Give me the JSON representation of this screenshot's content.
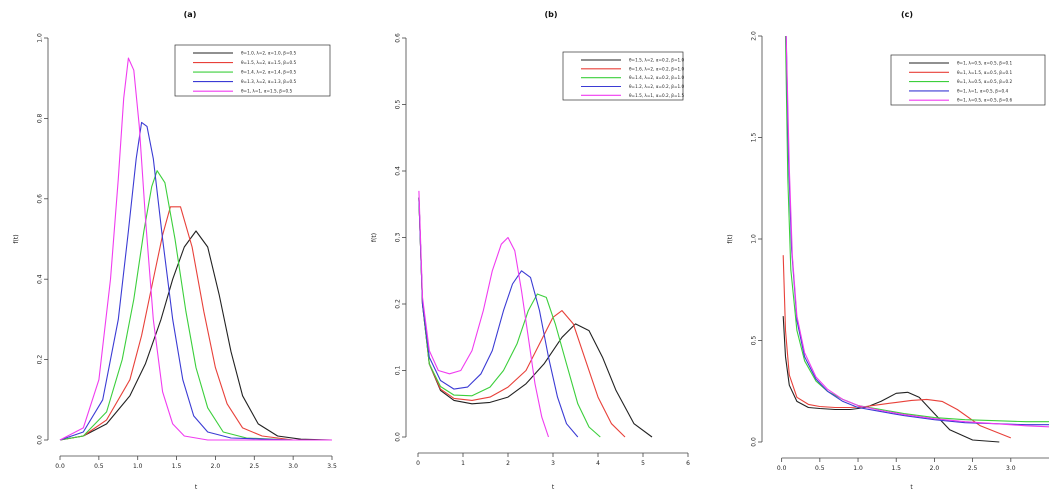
{
  "palette": [
    "#222222",
    "#e8413a",
    "#3ccf3c",
    "#3b3bd4",
    "#f03cf0"
  ],
  "chart_data": [
    {
      "type": "line",
      "title": "(a)",
      "xlabel": "t",
      "ylabel": "f(t)",
      "xlim": [
        0,
        3.5
      ],
      "ylim": [
        0,
        1.0
      ],
      "xticks": [
        0.0,
        0.5,
        1.0,
        1.5,
        2.0,
        2.5,
        3.0,
        3.5
      ],
      "xtick_labels": [
        "0.0",
        "0.5",
        "1.0",
        "1.5",
        "2.0",
        "2.5",
        "3.0",
        "3.5"
      ],
      "yticks": [
        0.0,
        0.2,
        0.4,
        0.6,
        0.8,
        1.0
      ],
      "ytick_labels": [
        "0.0",
        "0.2",
        "0.4",
        "0.6",
        "0.8",
        "1.0"
      ],
      "legend_position": "top-right",
      "series": [
        {
          "name": "θ=1.0, λ=2, α=1.0, β=0.5",
          "x": [
            0,
            0.3,
            0.6,
            0.9,
            1.1,
            1.3,
            1.45,
            1.6,
            1.75,
            1.9,
            2.05,
            2.2,
            2.35,
            2.55,
            2.8,
            3.1,
            3.5
          ],
          "y": [
            0,
            0.01,
            0.04,
            0.11,
            0.19,
            0.3,
            0.4,
            0.48,
            0.52,
            0.48,
            0.36,
            0.22,
            0.11,
            0.04,
            0.01,
            0.002,
            0
          ]
        },
        {
          "name": "θ=1.5, λ=2, α=1.5, β=0.5",
          "x": [
            0,
            0.3,
            0.6,
            0.9,
            1.05,
            1.2,
            1.32,
            1.42,
            1.55,
            1.7,
            1.85,
            2.0,
            2.15,
            2.35,
            2.6,
            3.0,
            3.5
          ],
          "y": [
            0,
            0.01,
            0.05,
            0.15,
            0.26,
            0.4,
            0.51,
            0.58,
            0.58,
            0.48,
            0.32,
            0.18,
            0.09,
            0.03,
            0.01,
            0,
            0
          ]
        },
        {
          "name": "θ=1.4, λ=2, α=1.4, β=0.5",
          "x": [
            0,
            0.3,
            0.6,
            0.8,
            0.95,
            1.08,
            1.18,
            1.25,
            1.35,
            1.48,
            1.62,
            1.75,
            1.9,
            2.1,
            2.4,
            3.0,
            3.5
          ],
          "y": [
            0,
            0.01,
            0.07,
            0.2,
            0.35,
            0.52,
            0.63,
            0.67,
            0.64,
            0.5,
            0.32,
            0.18,
            0.08,
            0.02,
            0.005,
            0,
            0
          ]
        },
        {
          "name": "θ=1.3, λ=2, α=1.3, β=0.5",
          "x": [
            0,
            0.3,
            0.55,
            0.75,
            0.88,
            0.98,
            1.05,
            1.12,
            1.2,
            1.32,
            1.45,
            1.58,
            1.72,
            1.9,
            2.2,
            3.0,
            3.5
          ],
          "y": [
            0,
            0.02,
            0.1,
            0.3,
            0.52,
            0.7,
            0.79,
            0.78,
            0.7,
            0.5,
            0.3,
            0.15,
            0.06,
            0.02,
            0.005,
            0,
            0
          ]
        },
        {
          "name": "θ=1, λ=1, α=1.5, β=0.5",
          "x": [
            0,
            0.3,
            0.5,
            0.65,
            0.75,
            0.82,
            0.88,
            0.95,
            1.02,
            1.1,
            1.2,
            1.32,
            1.45,
            1.6,
            1.9,
            3.0,
            3.5
          ],
          "y": [
            0,
            0.03,
            0.15,
            0.4,
            0.65,
            0.85,
            0.95,
            0.92,
            0.78,
            0.55,
            0.3,
            0.12,
            0.04,
            0.01,
            0,
            0,
            0
          ]
        }
      ]
    },
    {
      "type": "line",
      "title": "(b)",
      "xlabel": "t",
      "ylabel": "f(t)",
      "xlim": [
        0,
        6
      ],
      "ylim": [
        0,
        0.6
      ],
      "xticks": [
        0,
        1,
        2,
        3,
        4,
        5,
        6
      ],
      "xtick_labels": [
        "0",
        "1",
        "2",
        "3",
        "4",
        "5",
        "6"
      ],
      "yticks": [
        0.0,
        0.1,
        0.2,
        0.3,
        0.4,
        0.5,
        0.6
      ],
      "ytick_labels": [
        "0.0",
        "0.1",
        "0.2",
        "0.3",
        "0.4",
        "0.5",
        "0.6"
      ],
      "legend_position": "top-right",
      "series": [
        {
          "name": "θ=1.5, λ=2, α=0.2, β=1.0",
          "x": [
            0.02,
            0.1,
            0.25,
            0.5,
            0.8,
            1.2,
            1.6,
            2.0,
            2.4,
            2.8,
            3.2,
            3.5,
            3.8,
            4.1,
            4.4,
            4.8,
            5.2
          ],
          "y": [
            0.36,
            0.2,
            0.11,
            0.07,
            0.055,
            0.05,
            0.052,
            0.06,
            0.08,
            0.11,
            0.15,
            0.17,
            0.16,
            0.12,
            0.07,
            0.02,
            0
          ]
        },
        {
          "name": "θ=1.6, λ=2, α=0.2, β=1.0",
          "x": [
            0.02,
            0.1,
            0.25,
            0.5,
            0.8,
            1.2,
            1.6,
            2.0,
            2.4,
            2.7,
            3.0,
            3.2,
            3.45,
            3.7,
            4.0,
            4.3,
            4.6
          ],
          "y": [
            0.36,
            0.2,
            0.11,
            0.072,
            0.058,
            0.055,
            0.06,
            0.075,
            0.1,
            0.14,
            0.18,
            0.19,
            0.17,
            0.12,
            0.06,
            0.02,
            0
          ]
        },
        {
          "name": "θ=1.4, λ=2, α=0.2, β=1.0",
          "x": [
            0.02,
            0.1,
            0.25,
            0.5,
            0.8,
            1.2,
            1.6,
            1.9,
            2.2,
            2.45,
            2.65,
            2.85,
            3.05,
            3.3,
            3.55,
            3.8,
            4.05
          ],
          "y": [
            0.36,
            0.2,
            0.11,
            0.076,
            0.063,
            0.062,
            0.075,
            0.1,
            0.14,
            0.19,
            0.215,
            0.21,
            0.17,
            0.11,
            0.05,
            0.015,
            0
          ]
        },
        {
          "name": "θ=1.2, λ=2, α=0.2, β=1.0",
          "x": [
            0.02,
            0.1,
            0.25,
            0.5,
            0.8,
            1.1,
            1.4,
            1.65,
            1.9,
            2.1,
            2.3,
            2.5,
            2.7,
            2.9,
            3.1,
            3.3,
            3.55
          ],
          "y": [
            0.36,
            0.2,
            0.12,
            0.085,
            0.072,
            0.075,
            0.095,
            0.13,
            0.19,
            0.23,
            0.25,
            0.24,
            0.19,
            0.12,
            0.06,
            0.02,
            0
          ]
        },
        {
          "name": "θ=1.5, λ=1, α=0.2, β=1.5",
          "x": [
            0.02,
            0.1,
            0.25,
            0.45,
            0.7,
            0.95,
            1.2,
            1.45,
            1.65,
            1.85,
            2.0,
            2.15,
            2.3,
            2.45,
            2.6,
            2.75,
            2.9
          ],
          "y": [
            0.37,
            0.21,
            0.13,
            0.1,
            0.095,
            0.1,
            0.13,
            0.19,
            0.25,
            0.29,
            0.3,
            0.28,
            0.22,
            0.15,
            0.08,
            0.03,
            0
          ]
        }
      ]
    },
    {
      "type": "line",
      "title": "(c)",
      "xlabel": "t",
      "ylabel": "f(t)",
      "xlim": [
        -0.1,
        3.5
      ],
      "ylim": [
        0,
        2.0
      ],
      "xticks": [
        0.0,
        0.5,
        1.0,
        1.5,
        2.0,
        2.5,
        3.0,
        3.5
      ],
      "xtick_labels": [
        "0.0",
        "0.5",
        "1.0",
        "1.5",
        "2.0",
        "2.5",
        "3.0",
        "3.5"
      ],
      "yticks": [
        0.0,
        0.5,
        1.0,
        1.5,
        2.0
      ],
      "ytick_labels": [
        "0.0",
        "0.5",
        "1.0",
        "1.5",
        "2.0"
      ],
      "legend_position": "top-right",
      "series": [
        {
          "name": "θ=1, λ=0.5, α=0.5, β=0.1",
          "x": [
            0.02,
            0.05,
            0.1,
            0.2,
            0.35,
            0.5,
            0.7,
            0.9,
            1.1,
            1.3,
            1.5,
            1.65,
            1.8,
            2.0,
            2.2,
            2.5,
            2.85
          ],
          "y": [
            0.62,
            0.42,
            0.28,
            0.2,
            0.17,
            0.165,
            0.16,
            0.16,
            0.17,
            0.2,
            0.24,
            0.245,
            0.22,
            0.14,
            0.06,
            0.01,
            0
          ]
        },
        {
          "name": "θ=1, λ=1.5, α=0.5, β=0.1",
          "x": [
            0.02,
            0.05,
            0.1,
            0.2,
            0.35,
            0.5,
            0.7,
            0.9,
            1.1,
            1.3,
            1.5,
            1.7,
            1.9,
            2.1,
            2.3,
            2.6,
            3.0
          ],
          "y": [
            0.92,
            0.55,
            0.33,
            0.22,
            0.185,
            0.175,
            0.17,
            0.17,
            0.175,
            0.185,
            0.195,
            0.205,
            0.21,
            0.2,
            0.16,
            0.08,
            0.02
          ]
        },
        {
          "name": "θ=1, λ=0.5, α=0.5, β=0.2",
          "x": [
            0.05,
            0.08,
            0.12,
            0.2,
            0.3,
            0.45,
            0.6,
            0.8,
            1.0,
            1.3,
            1.6,
            2.0,
            2.4,
            2.8,
            3.2,
            3.5
          ],
          "y": [
            2.0,
            1.3,
            0.85,
            0.55,
            0.4,
            0.3,
            0.25,
            0.21,
            0.18,
            0.16,
            0.14,
            0.12,
            0.11,
            0.105,
            0.1,
            0.1
          ]
        },
        {
          "name": "θ=1, λ=1, α=0.5, β=0.4",
          "x": [
            0.06,
            0.09,
            0.13,
            0.2,
            0.3,
            0.45,
            0.6,
            0.8,
            1.0,
            1.3,
            1.6,
            2.0,
            2.4,
            2.8,
            3.2,
            3.5
          ],
          "y": [
            2.0,
            1.4,
            0.95,
            0.6,
            0.42,
            0.31,
            0.25,
            0.2,
            0.17,
            0.15,
            0.13,
            0.11,
            0.095,
            0.09,
            0.085,
            0.085
          ]
        },
        {
          "name": "θ=1, λ=0.5, α=0.5, β=0.6",
          "x": [
            0.06,
            0.1,
            0.14,
            0.2,
            0.3,
            0.45,
            0.6,
            0.8,
            1.0,
            1.3,
            1.6,
            2.0,
            2.4,
            2.8,
            3.2,
            3.5
          ],
          "y": [
            2.0,
            1.35,
            0.92,
            0.62,
            0.44,
            0.32,
            0.26,
            0.21,
            0.18,
            0.155,
            0.135,
            0.115,
            0.1,
            0.09,
            0.08,
            0.075
          ]
        }
      ]
    }
  ]
}
